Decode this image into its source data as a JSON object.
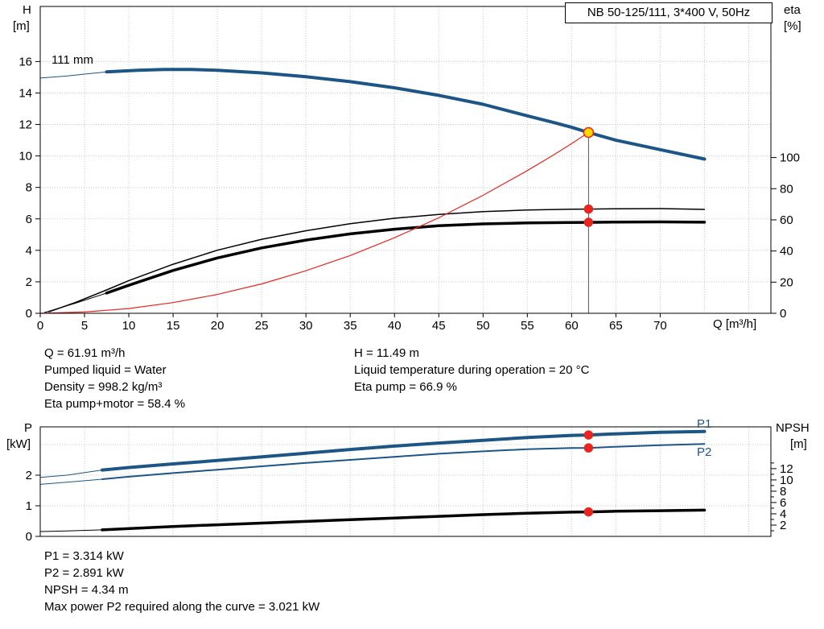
{
  "operating_info": {
    "col1": [
      "Q = 61.91 m³/h",
      "Pumped liquid = Water",
      "Density = 998.2 kg/m³",
      "Eta pump+motor = 58.4 %"
    ],
    "col2": [
      "H = 11.49 m",
      "Liquid temperature during operation = 20 °C",
      "Eta pump = 66.9 %"
    ]
  },
  "power_info": [
    "P1 = 3.314 kW",
    "P2 = 2.891 kW",
    "NPSH = 4.34 m",
    "Max power P2 required along the curve = 3.021 kW"
  ],
  "colors": {
    "curve_blue": "#1d5586",
    "curve_black": "#000000",
    "curve_red": "#e8251f",
    "duty_point_fill": "#ffd800",
    "grid": "#c8c8c8"
  },
  "chart_data": [
    {
      "type": "line",
      "title": "NB 50-125/111, 3*400 V, 50Hz",
      "xlabel": "Q [m³/h]",
      "ylabel_left": "H [m]",
      "ylabel_right": "eta [%]",
      "left_axis_name": "H",
      "left_axis_unit": "[m]",
      "right_axis_name": "eta",
      "right_axis_unit": "[%]",
      "impeller_label": "111 mm",
      "xlim": [
        0,
        82.5
      ],
      "x_ticks": [
        0,
        5,
        10,
        15,
        20,
        25,
        30,
        35,
        40,
        45,
        50,
        55,
        60,
        65,
        70
      ],
      "x_grid": [
        0,
        5,
        10,
        15,
        20,
        25,
        30,
        35,
        40,
        45,
        50,
        55,
        60,
        65,
        70,
        75,
        80
      ],
      "y_grid": [
        2,
        4,
        6,
        8,
        10,
        12,
        14,
        16
      ],
      "left_axis": "H",
      "right_axis": "eta",
      "axes": {
        "H": {
          "range": [
            0,
            19.5
          ],
          "ticks": [
            0,
            2,
            4,
            6,
            8,
            10,
            12,
            14,
            16
          ]
        },
        "eta": {
          "range": [
            0,
            197
          ],
          "ticks": [
            0,
            20,
            40,
            60,
            80,
            100
          ]
        }
      },
      "series": [
        {
          "name": "head-curve-lead",
          "axis": "H",
          "color": "#1d5586",
          "width": 1,
          "points": [
            [
              0,
              14.95
            ],
            [
              3,
              15.08
            ],
            [
              5,
              15.2
            ],
            [
              7.5,
              15.34
            ]
          ]
        },
        {
          "name": "head-curve",
          "axis": "H",
          "color": "#1d5586",
          "width": 4,
          "points": [
            [
              7.5,
              15.34
            ],
            [
              11,
              15.44
            ],
            [
              14,
              15.5
            ],
            [
              17,
              15.5
            ],
            [
              20,
              15.44
            ],
            [
              25,
              15.28
            ],
            [
              30,
              15.03
            ],
            [
              35,
              14.72
            ],
            [
              40,
              14.33
            ],
            [
              45,
              13.85
            ],
            [
              50,
              13.28
            ],
            [
              55,
              12.55
            ],
            [
              58,
              12.12
            ],
            [
              60,
              11.82
            ],
            [
              61.91,
              11.49
            ],
            [
              65,
              11.0
            ],
            [
              70,
              10.4
            ],
            [
              75,
              9.8
            ]
          ]
        },
        {
          "name": "eta-pump-curve",
          "axis": "eta",
          "color": "#000000",
          "width": 1.5,
          "points": [
            [
              1,
              1
            ],
            [
              4,
              7
            ],
            [
              7.5,
              15
            ],
            [
              10,
              21
            ],
            [
              15,
              31.5
            ],
            [
              20,
              40.5
            ],
            [
              25,
              47.5
            ],
            [
              30,
              53
            ],
            [
              35,
              57.5
            ],
            [
              40,
              61
            ],
            [
              45,
              63.5
            ],
            [
              50,
              65.3
            ],
            [
              55,
              66.3
            ],
            [
              60,
              66.8
            ],
            [
              61.91,
              66.9
            ],
            [
              65,
              67.1
            ],
            [
              70,
              67.2
            ],
            [
              75,
              66.7
            ]
          ]
        },
        {
          "name": "eta-pump-motor-lead",
          "axis": "eta",
          "color": "#000000",
          "width": 1,
          "points": [
            [
              0.5,
              0.5
            ],
            [
              4,
              6.5
            ],
            [
              7.5,
              13
            ]
          ]
        },
        {
          "name": "eta-pump-motor-curve",
          "axis": "eta",
          "color": "#000000",
          "width": 3.5,
          "points": [
            [
              7.5,
              13
            ],
            [
              10,
              18
            ],
            [
              15,
              27.5
            ],
            [
              20,
              35.5
            ],
            [
              25,
              42
            ],
            [
              30,
              47
            ],
            [
              35,
              51
            ],
            [
              40,
              54
            ],
            [
              45,
              56.2
            ],
            [
              50,
              57.4
            ],
            [
              55,
              58
            ],
            [
              60,
              58.3
            ],
            [
              61.91,
              58.4
            ],
            [
              65,
              58.6
            ],
            [
              70,
              58.7
            ],
            [
              75,
              58.5
            ]
          ]
        },
        {
          "name": "duty-system-curve",
          "axis": "H",
          "color": "#e8251f",
          "width": 1.2,
          "points": [
            [
              0,
              0
            ],
            [
              5,
              0.08
            ],
            [
              10,
              0.3
            ],
            [
              15,
              0.68
            ],
            [
              20,
              1.2
            ],
            [
              25,
              1.87
            ],
            [
              30,
              2.7
            ],
            [
              35,
              3.67
            ],
            [
              40,
              4.8
            ],
            [
              45,
              6.07
            ],
            [
              50,
              7.5
            ],
            [
              55,
              9.07
            ],
            [
              58,
              10.08
            ],
            [
              60,
              10.79
            ],
            [
              61.91,
              11.49
            ]
          ]
        },
        {
          "name": "duty-point-vline",
          "axis": "H",
          "color": "#555555",
          "width": 1,
          "points": [
            [
              61.91,
              0
            ],
            [
              61.91,
              11.49
            ]
          ]
        }
      ],
      "markers": [
        {
          "name": "duty-point",
          "axis": "H",
          "x": 61.91,
          "y": 11.49,
          "r": 6,
          "fill": "#ffd800",
          "stroke": "#e8251f"
        },
        {
          "name": "eta-pump-point",
          "axis": "eta",
          "x": 61.91,
          "y": 66.9,
          "r": 5,
          "fill": "#e8251f",
          "stroke": "#e8251f"
        },
        {
          "name": "eta-pump-motor-point",
          "axis": "eta",
          "x": 61.91,
          "y": 58.4,
          "r": 5,
          "fill": "#e8251f",
          "stroke": "#e8251f"
        }
      ]
    },
    {
      "type": "line",
      "title": "",
      "xlabel": "",
      "ylabel_left": "P [kW]",
      "ylabel_right": "NPSH [m]",
      "left_axis_name": "P",
      "left_axis_unit": "[kW]",
      "right_axis_name": "NPSH",
      "right_axis_unit": "[m]",
      "p1_label": "P1",
      "p2_label": "P2",
      "xlim": [
        0,
        82.5
      ],
      "x_ticks": [],
      "x_grid": [
        0,
        5,
        10,
        15,
        20,
        25,
        30,
        35,
        40,
        45,
        50,
        55,
        60,
        65,
        70,
        75,
        80
      ],
      "y_grid": [
        1,
        2,
        3
      ],
      "left_axis": "P",
      "right_axis": "NPSH",
      "axes": {
        "P": {
          "range": [
            0,
            3.58
          ],
          "ticks": [
            0,
            1,
            2
          ]
        },
        "NPSH": {
          "range": [
            0,
            19.4
          ],
          "ticks": [
            2,
            4,
            6,
            8,
            10,
            12
          ],
          "minor": [
            1,
            3,
            5,
            7,
            9,
            11,
            13
          ]
        }
      },
      "series": [
        {
          "name": "p1-lead",
          "axis": "P",
          "color": "#1d5586",
          "width": 1,
          "points": [
            [
              0,
              1.93
            ],
            [
              3,
              2.0
            ],
            [
              7,
              2.17
            ]
          ]
        },
        {
          "name": "p1-curve",
          "axis": "P",
          "color": "#1d5586",
          "width": 4,
          "points": [
            [
              7,
              2.17
            ],
            [
              10,
              2.25
            ],
            [
              15,
              2.37
            ],
            [
              20,
              2.48
            ],
            [
              25,
              2.6
            ],
            [
              30,
              2.72
            ],
            [
              35,
              2.84
            ],
            [
              40,
              2.95
            ],
            [
              45,
              3.05
            ],
            [
              50,
              3.14
            ],
            [
              55,
              3.23
            ],
            [
              60,
              3.3
            ],
            [
              61.91,
              3.314
            ],
            [
              65,
              3.35
            ],
            [
              70,
              3.4
            ],
            [
              75,
              3.43
            ]
          ]
        },
        {
          "name": "p2-lead",
          "axis": "P",
          "color": "#1d5586",
          "width": 1,
          "points": [
            [
              0,
              1.7
            ],
            [
              3,
              1.77
            ],
            [
              7,
              1.87
            ]
          ]
        },
        {
          "name": "p2-curve",
          "axis": "P",
          "color": "#1d5586",
          "width": 2,
          "points": [
            [
              7,
              1.87
            ],
            [
              10,
              1.95
            ],
            [
              15,
              2.07
            ],
            [
              20,
              2.18
            ],
            [
              25,
              2.29
            ],
            [
              30,
              2.4
            ],
            [
              35,
              2.5
            ],
            [
              40,
              2.6
            ],
            [
              45,
              2.7
            ],
            [
              50,
              2.78
            ],
            [
              55,
              2.85
            ],
            [
              60,
              2.89
            ],
            [
              61.91,
              2.891
            ],
            [
              65,
              2.93
            ],
            [
              70,
              2.98
            ],
            [
              75,
              3.02
            ]
          ]
        },
        {
          "name": "npsh-lead",
          "axis": "NPSH",
          "color": "#000000",
          "width": 1,
          "points": [
            [
              0,
              0.85
            ],
            [
              3,
              0.95
            ],
            [
              7,
              1.15
            ]
          ]
        },
        {
          "name": "npsh-curve",
          "axis": "NPSH",
          "color": "#000000",
          "width": 3.5,
          "points": [
            [
              7,
              1.15
            ],
            [
              15,
              1.75
            ],
            [
              20,
              2.05
            ],
            [
              25,
              2.35
            ],
            [
              30,
              2.65
            ],
            [
              35,
              2.95
            ],
            [
              40,
              3.25
            ],
            [
              45,
              3.55
            ],
            [
              50,
              3.85
            ],
            [
              55,
              4.1
            ],
            [
              60,
              4.3
            ],
            [
              61.91,
              4.34
            ],
            [
              65,
              4.45
            ],
            [
              70,
              4.55
            ],
            [
              75,
              4.65
            ]
          ]
        }
      ],
      "markers": [
        {
          "name": "p1-point",
          "axis": "P",
          "x": 61.91,
          "y": 3.314,
          "r": 5,
          "fill": "#e8251f",
          "stroke": "#e8251f"
        },
        {
          "name": "p2-point",
          "axis": "P",
          "x": 61.91,
          "y": 2.891,
          "r": 5,
          "fill": "#e8251f",
          "stroke": "#e8251f"
        },
        {
          "name": "npsh-point",
          "axis": "NPSH",
          "x": 61.91,
          "y": 4.34,
          "r": 5,
          "fill": "#e8251f",
          "stroke": "#e8251f"
        }
      ]
    }
  ]
}
